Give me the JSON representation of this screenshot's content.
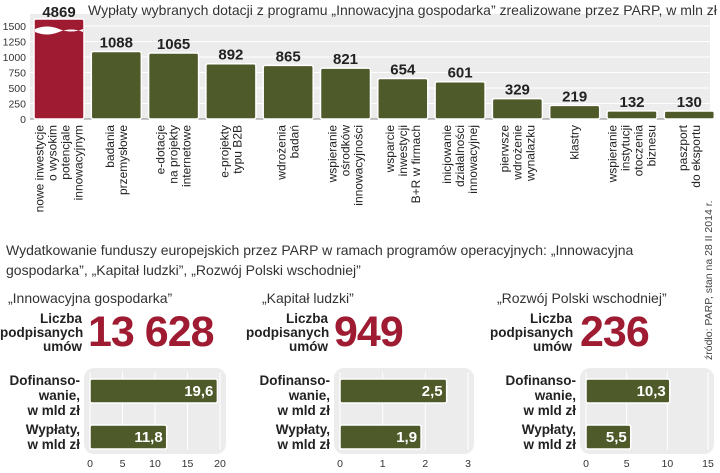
{
  "chart_data": [
    {
      "type": "bar",
      "title": "Wypłaty wybranych dotacji z programu „Innowacyjna gospodarka” zrealizowane przez PARP, w mln zł",
      "ylim": [
        0,
        1500
      ],
      "yticks": [
        0,
        250,
        500,
        750,
        1000,
        1250,
        1500
      ],
      "categories": [
        "nowe inwestycje o wysokim potencjale innowacyjnym",
        "badania przemysłowe",
        "e-dotacje na projekty internetowe",
        "e-projekty typu B2B",
        "wdrożenia badań",
        "wspieranie ośrodków innowacyjności",
        "wsparcie inwestycji B+R w firmach",
        "inicjowanie działalności innowacyjnej",
        "pierwsze wdrożenie wynalazku",
        "klastry",
        "wspieranie instytucji otoczenia biznesu",
        "paszport do eksportu"
      ],
      "category_lines": [
        [
          "nowe inwestycje",
          "o wysokim",
          "potencjale",
          "innowacyjnym"
        ],
        [
          "badania",
          "przemysłowe"
        ],
        [
          "e-dotacje",
          "na projekty",
          "internetowe"
        ],
        [
          "e-projekty",
          "typu B2B"
        ],
        [
          "wdrożenia",
          "badań"
        ],
        [
          "wspieranie",
          "ośrodków",
          "innowacyjności"
        ],
        [
          "wsparcie",
          "inwestycji",
          "B+R w firmach"
        ],
        [
          "inicjowanie",
          "działalności",
          "innowacyjnej"
        ],
        [
          "pierwsze",
          "wdrożenie",
          "wynalazku"
        ],
        [
          "klastry"
        ],
        [
          "wspieranie",
          "instytucji",
          "otoczenia",
          "biznesu"
        ],
        [
          "paszport",
          "do eksportu"
        ]
      ],
      "values": [
        4869,
        1088,
        1065,
        892,
        865,
        821,
        654,
        601,
        329,
        219,
        132,
        130
      ],
      "value_labels": [
        "4869",
        "1088",
        "1065",
        "892",
        "865",
        "821",
        "654",
        "601",
        "329",
        "219",
        "132",
        "130"
      ],
      "axis_break": true,
      "colors": {
        "highlight": "#9e1b32",
        "bar": "#4f5a2a",
        "panel": "#ececec"
      }
    },
    {
      "type": "bar",
      "orientation": "horizontal",
      "program": "„Innowacyjna gospodarka”",
      "categories": [
        "Dofinansowanie, w mld zł",
        "Wypłaty, w mld zł"
      ],
      "values": [
        19.6,
        11.8
      ],
      "value_labels": [
        "19,6",
        "11,8"
      ],
      "xlim": [
        0,
        20
      ],
      "xticks": [
        0,
        5,
        10,
        15,
        20
      ]
    },
    {
      "type": "bar",
      "orientation": "horizontal",
      "program": "„Kapitał ludzki”",
      "categories": [
        "Dofinansowanie, w mld zł",
        "Wypłaty, w mld zł"
      ],
      "values": [
        2.5,
        1.9
      ],
      "value_labels": [
        "2,5",
        "1,9"
      ],
      "xlim": [
        0,
        3
      ],
      "xticks": [
        0,
        1,
        2,
        3
      ]
    },
    {
      "type": "bar",
      "orientation": "horizontal",
      "program": "„Rozwój Polski wschodniej”",
      "categories": [
        "Dofinansowanie, w mld zł",
        "Wypłaty, w mld zł"
      ],
      "values": [
        10.3,
        5.5
      ],
      "value_labels": [
        "10,3",
        "5,5"
      ],
      "xlim": [
        0,
        15
      ],
      "xticks": [
        0,
        5,
        10,
        15
      ]
    }
  ],
  "section2": {
    "title": "Wydatkowanie funduszy europejskich przez PARP w ramach programów operacyjnych: „Innowacyjna gospodarka”, „Kapitał ludzki”, „Rozwój Polski wschodniej”",
    "count_label_lines": [
      "Liczba",
      "podpisanych",
      "umów"
    ],
    "programs": [
      {
        "name": "„Innowacyjna gospodarka”",
        "contracts": "13 628",
        "rows": [
          {
            "label_lines": [
              "Dofinanso-",
              "wanie,",
              "w mld zł"
            ],
            "value_label": "19,6"
          },
          {
            "label_lines": [
              "Wypłaty,",
              "w mld zł"
            ],
            "value_label": "11,8"
          }
        ]
      },
      {
        "name": "„Kapitał ludzki”",
        "contracts": "949",
        "rows": [
          {
            "label_lines": [
              "Dofinanso-",
              "wanie,",
              "w mld zł"
            ],
            "value_label": "2,5"
          },
          {
            "label_lines": [
              "Wypłaty,",
              "w mld zł"
            ],
            "value_label": "1,9"
          }
        ]
      },
      {
        "name": "„Rozwój Polski wschodniej”",
        "contracts": "236",
        "rows": [
          {
            "label_lines": [
              "Dofinanso-",
              "wanie,",
              "w mld zł"
            ],
            "value_label": "10,3"
          },
          {
            "label_lines": [
              "Wypłaty,",
              "w mld zł"
            ],
            "value_label": "5,5"
          }
        ]
      }
    ]
  },
  "source": "źródło: PARP, stan na 28 II 2014 r."
}
